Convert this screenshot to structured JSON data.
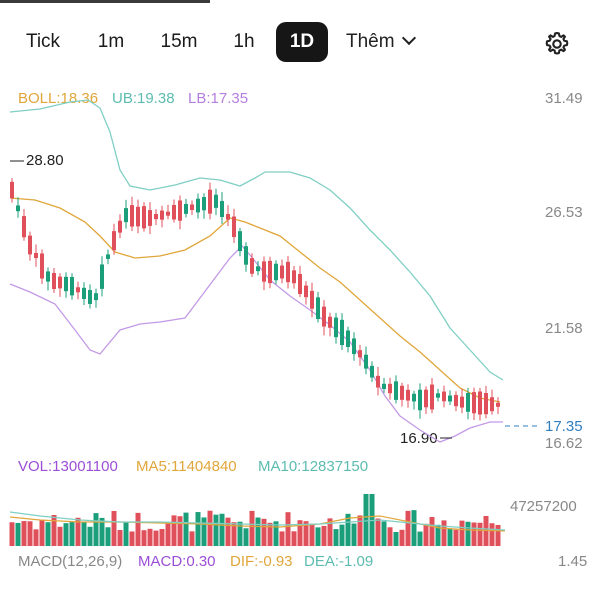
{
  "tabs": [
    {
      "label": "Tick",
      "active": false
    },
    {
      "label": "1m",
      "active": false
    },
    {
      "label": "15m",
      "active": false
    },
    {
      "label": "1h",
      "active": false
    },
    {
      "label": "1D",
      "active": true
    }
  ],
  "more_label": "Thêm",
  "indicators": {
    "boll": "BOLL:18.36",
    "ub": "UB:19.38",
    "lb": "LB:17.35",
    "vol": "VOL:13001100",
    "ma5": "MA5:11404840",
    "ma10": "MA10:12837150",
    "macd_params": "MACD(12,26,9)",
    "macd": "MACD:0.30",
    "dif": "DIF:-0.93",
    "dea": "DEA:-1.09"
  },
  "price_axis": [
    "31.49",
    "26.53",
    "21.58",
    "16.62"
  ],
  "current_price": "17.35",
  "high_marker": "28.80",
  "low_marker": "16.90",
  "volume_axis_max": "47257200",
  "macd_axis_max": "1.45",
  "colors": {
    "up": "#1b9e7a",
    "down": "#e0505a",
    "boll": "#e0a63a",
    "ub": "#7fcfc4",
    "lb": "#c39ae6",
    "current_price": "#2f7fc0",
    "macd_label": "#9b4fd6"
  }
}
